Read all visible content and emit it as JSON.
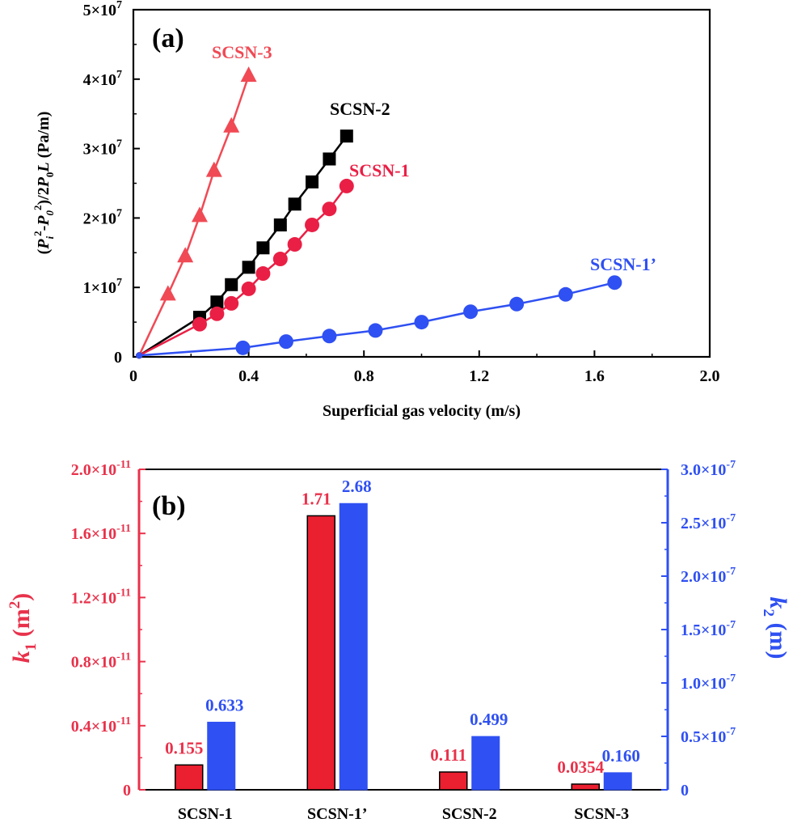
{
  "chart_data": [
    {
      "type": "line",
      "panel_label": "(a)",
      "xlabel": "Superficial gas velocity (m/s)",
      "ylabel": "(P_i^2-P_0^2)/2P_0L (Pa/m)",
      "xlim": [
        0,
        2.0
      ],
      "ylim": [
        0,
        50000000
      ],
      "x_ticks": [
        "0",
        "0.4",
        "0.8",
        "1.2",
        "1.6",
        "2.0"
      ],
      "y_ticks": [
        "0",
        "1×10^7",
        "2×10^7",
        "3×10^7",
        "4×10^7",
        "5×10^7"
      ],
      "series": [
        {
          "name": "SCSN-3",
          "color": "#f04a55",
          "marker": "triangle",
          "x": [
            0.02,
            0.12,
            0.18,
            0.23,
            0.28,
            0.34,
            0.4
          ],
          "y": [
            200000,
            9000000,
            14500000,
            20300000,
            26800000,
            33200000,
            40500000
          ]
        },
        {
          "name": "SCSN-2",
          "color": "#000000",
          "marker": "square",
          "x": [
            0.02,
            0.23,
            0.29,
            0.34,
            0.4,
            0.45,
            0.51,
            0.56,
            0.62,
            0.68,
            0.74
          ],
          "y": [
            200000,
            5700000,
            7900000,
            10400000,
            12900000,
            15700000,
            19000000,
            22000000,
            25200000,
            28500000,
            31800000
          ]
        },
        {
          "name": "SCSN-1",
          "color": "#ea1f45",
          "marker": "circle",
          "x": [
            0.02,
            0.23,
            0.29,
            0.34,
            0.4,
            0.45,
            0.51,
            0.56,
            0.62,
            0.68,
            0.74
          ],
          "y": [
            200000,
            4700000,
            6200000,
            7700000,
            9800000,
            12000000,
            14100000,
            16200000,
            19000000,
            21300000,
            24600000
          ]
        },
        {
          "name": "SCSN-1’",
          "color": "#2f50f2",
          "marker": "circle",
          "x": [
            0.02,
            0.38,
            0.53,
            0.68,
            0.84,
            1.0,
            1.17,
            1.33,
            1.5,
            1.67
          ],
          "y": [
            200000,
            1300000,
            2200000,
            3000000,
            3800000,
            5000000,
            6500000,
            7600000,
            9000000,
            10700000
          ]
        }
      ]
    },
    {
      "type": "bar",
      "panel_label": "(b)",
      "categories": [
        "SCSN-1",
        "SCSN-1’",
        "SCSN-2",
        "SCSN-3"
      ],
      "y1label": "k1 (m2)",
      "y2label": "k2 (m)",
      "y1lim": [
        0,
        2e-11
      ],
      "y2lim": [
        0,
        3e-07
      ],
      "y1_ticks": [
        "0",
        "0.4×10^-11",
        "0.8×10^-11",
        "1.2×10^-11",
        "1.6×10^-11",
        "2.0×10^-11"
      ],
      "y2_ticks": [
        "0",
        "0.5×10^-7",
        "1.0×10^-7",
        "1.5×10^-7",
        "2.0×10^-7",
        "2.5×10^-7",
        "3.0×10^-7"
      ],
      "series": [
        {
          "axis": "k1",
          "color": "#ea1f2f",
          "values": [
            0.155,
            1.71,
            0.111,
            0.0354
          ],
          "labels": [
            "0.155",
            "1.71",
            "0.111",
            "0.0354"
          ],
          "unit_scale": "×10^-11"
        },
        {
          "axis": "k2",
          "color": "#2f50f2",
          "values": [
            0.633,
            2.68,
            0.499,
            0.16
          ],
          "labels": [
            "0.633",
            "2.68",
            "0.499",
            "0.160"
          ],
          "unit_scale": "×10^-7"
        }
      ]
    }
  ]
}
